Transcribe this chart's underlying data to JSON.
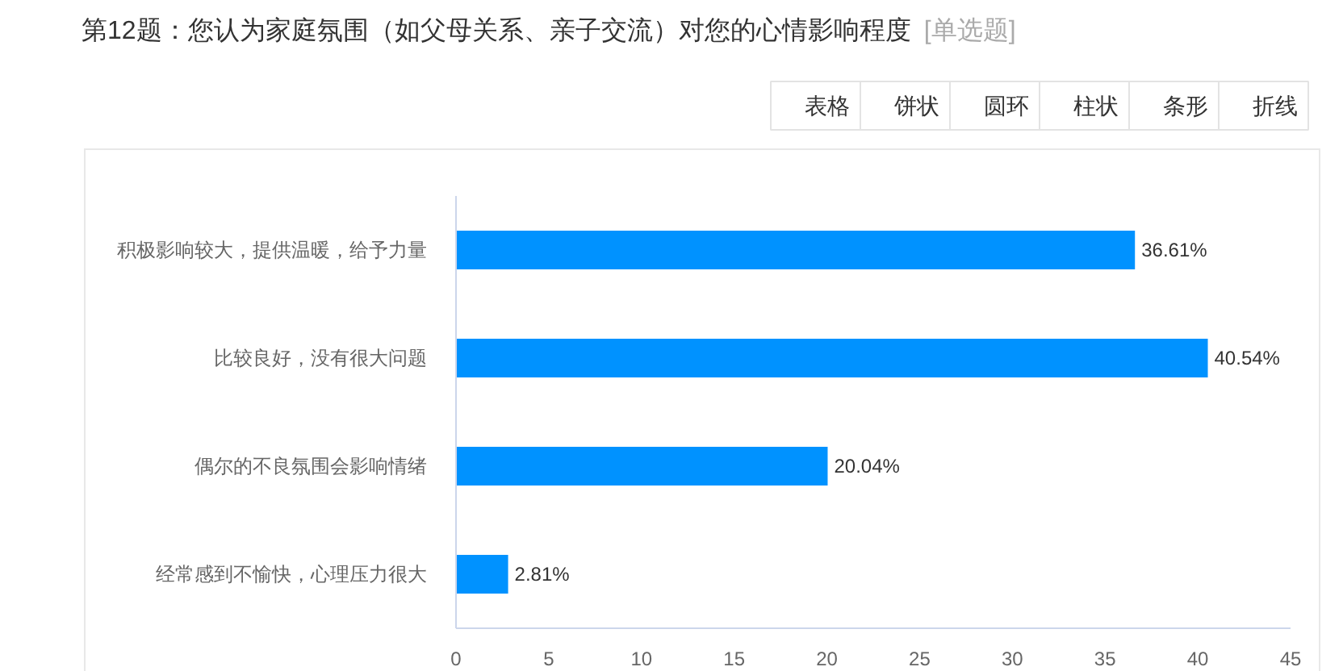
{
  "chart_data": {
    "type": "bar",
    "orientation": "horizontal",
    "title": "第12题：您认为家庭氛围（如父母关系、亲子交流）对您的心情影响程度",
    "subtitle": "[单选题]",
    "categories": [
      "积极影响较大，提供温暖，给予力量",
      "比较良好，没有很大问题",
      "偶尔的不良氛围会影响情绪",
      "经常感到不愉快，心理压力很大"
    ],
    "values": [
      36.61,
      40.54,
      20.04,
      2.81
    ],
    "value_labels": [
      "36.61%",
      "40.54%",
      "20.04%",
      "2.81%"
    ],
    "color": "#0092ff",
    "xlim": [
      0,
      45
    ],
    "xticks": [
      0,
      5,
      10,
      15,
      20,
      25,
      30,
      35,
      40,
      45
    ],
    "annotations": [
      "表格",
      "饼状",
      "圆环",
      "柱状",
      "条形",
      "折线"
    ]
  }
}
